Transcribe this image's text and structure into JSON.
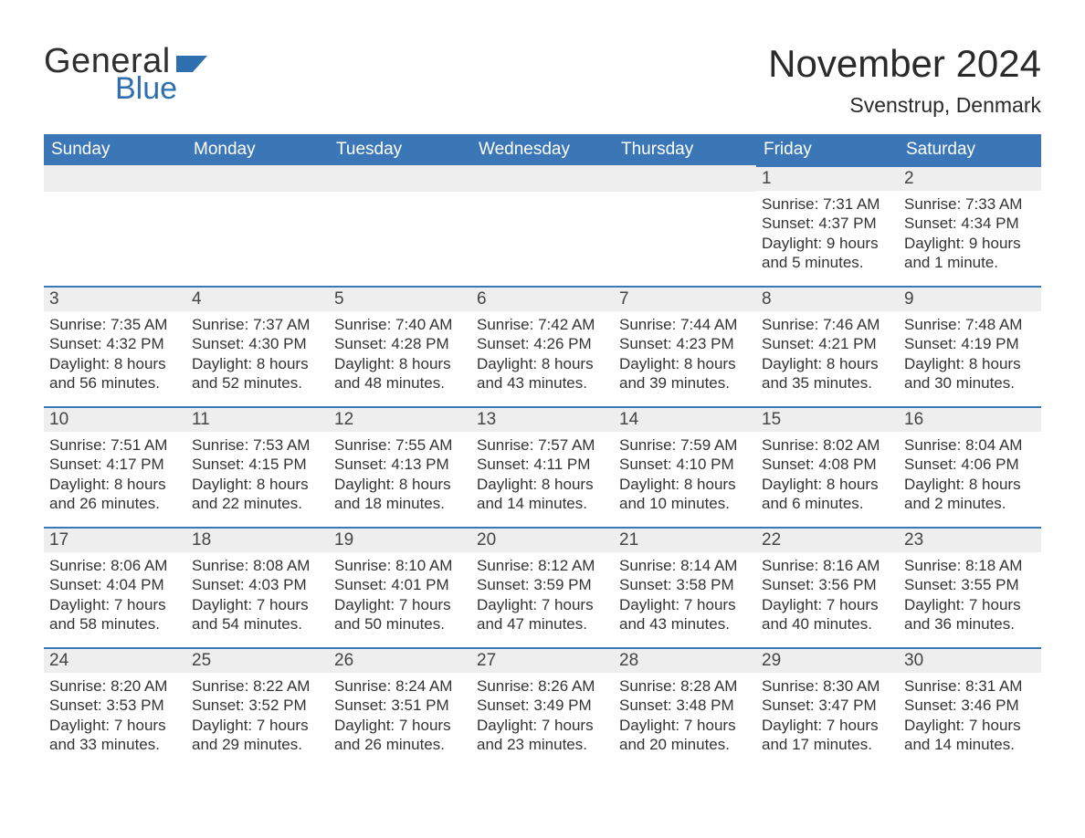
{
  "brand": {
    "word1": "General",
    "word2": "Blue",
    "word1_color": "#2f2f2f",
    "word2_color": "#2f6fb0",
    "flag_color": "#2f6fb0"
  },
  "header": {
    "month_year": "November 2024",
    "location": "Svenstrup, Denmark"
  },
  "colors": {
    "header_bg": "#3b77b7",
    "header_text": "#ffffff",
    "daynum_bg": "#eeeeee",
    "daynum_border": "#3b77b7",
    "text": "#333333",
    "page_bg": "#ffffff"
  },
  "typography": {
    "title_fontsize_pt": 32,
    "location_fontsize_pt": 17,
    "weekday_fontsize_pt": 14,
    "daynum_fontsize_pt": 14,
    "body_fontsize_pt": 13,
    "font_family": "Segoe UI"
  },
  "calendar": {
    "type": "table",
    "columns": [
      "Sunday",
      "Monday",
      "Tuesday",
      "Wednesday",
      "Thursday",
      "Friday",
      "Saturday"
    ],
    "weeks": [
      [
        {
          "empty": true
        },
        {
          "empty": true
        },
        {
          "empty": true
        },
        {
          "empty": true
        },
        {
          "empty": true
        },
        {
          "day": "1",
          "sunrise": "Sunrise: 7:31 AM",
          "sunset": "Sunset: 4:37 PM",
          "daylight": "Daylight: 9 hours and 5 minutes."
        },
        {
          "day": "2",
          "sunrise": "Sunrise: 7:33 AM",
          "sunset": "Sunset: 4:34 PM",
          "daylight": "Daylight: 9 hours and 1 minute."
        }
      ],
      [
        {
          "day": "3",
          "sunrise": "Sunrise: 7:35 AM",
          "sunset": "Sunset: 4:32 PM",
          "daylight": "Daylight: 8 hours and 56 minutes."
        },
        {
          "day": "4",
          "sunrise": "Sunrise: 7:37 AM",
          "sunset": "Sunset: 4:30 PM",
          "daylight": "Daylight: 8 hours and 52 minutes."
        },
        {
          "day": "5",
          "sunrise": "Sunrise: 7:40 AM",
          "sunset": "Sunset: 4:28 PM",
          "daylight": "Daylight: 8 hours and 48 minutes."
        },
        {
          "day": "6",
          "sunrise": "Sunrise: 7:42 AM",
          "sunset": "Sunset: 4:26 PM",
          "daylight": "Daylight: 8 hours and 43 minutes."
        },
        {
          "day": "7",
          "sunrise": "Sunrise: 7:44 AM",
          "sunset": "Sunset: 4:23 PM",
          "daylight": "Daylight: 8 hours and 39 minutes."
        },
        {
          "day": "8",
          "sunrise": "Sunrise: 7:46 AM",
          "sunset": "Sunset: 4:21 PM",
          "daylight": "Daylight: 8 hours and 35 minutes."
        },
        {
          "day": "9",
          "sunrise": "Sunrise: 7:48 AM",
          "sunset": "Sunset: 4:19 PM",
          "daylight": "Daylight: 8 hours and 30 minutes."
        }
      ],
      [
        {
          "day": "10",
          "sunrise": "Sunrise: 7:51 AM",
          "sunset": "Sunset: 4:17 PM",
          "daylight": "Daylight: 8 hours and 26 minutes."
        },
        {
          "day": "11",
          "sunrise": "Sunrise: 7:53 AM",
          "sunset": "Sunset: 4:15 PM",
          "daylight": "Daylight: 8 hours and 22 minutes."
        },
        {
          "day": "12",
          "sunrise": "Sunrise: 7:55 AM",
          "sunset": "Sunset: 4:13 PM",
          "daylight": "Daylight: 8 hours and 18 minutes."
        },
        {
          "day": "13",
          "sunrise": "Sunrise: 7:57 AM",
          "sunset": "Sunset: 4:11 PM",
          "daylight": "Daylight: 8 hours and 14 minutes."
        },
        {
          "day": "14",
          "sunrise": "Sunrise: 7:59 AM",
          "sunset": "Sunset: 4:10 PM",
          "daylight": "Daylight: 8 hours and 10 minutes."
        },
        {
          "day": "15",
          "sunrise": "Sunrise: 8:02 AM",
          "sunset": "Sunset: 4:08 PM",
          "daylight": "Daylight: 8 hours and 6 minutes."
        },
        {
          "day": "16",
          "sunrise": "Sunrise: 8:04 AM",
          "sunset": "Sunset: 4:06 PM",
          "daylight": "Daylight: 8 hours and 2 minutes."
        }
      ],
      [
        {
          "day": "17",
          "sunrise": "Sunrise: 8:06 AM",
          "sunset": "Sunset: 4:04 PM",
          "daylight": "Daylight: 7 hours and 58 minutes."
        },
        {
          "day": "18",
          "sunrise": "Sunrise: 8:08 AM",
          "sunset": "Sunset: 4:03 PM",
          "daylight": "Daylight: 7 hours and 54 minutes."
        },
        {
          "day": "19",
          "sunrise": "Sunrise: 8:10 AM",
          "sunset": "Sunset: 4:01 PM",
          "daylight": "Daylight: 7 hours and 50 minutes."
        },
        {
          "day": "20",
          "sunrise": "Sunrise: 8:12 AM",
          "sunset": "Sunset: 3:59 PM",
          "daylight": "Daylight: 7 hours and 47 minutes."
        },
        {
          "day": "21",
          "sunrise": "Sunrise: 8:14 AM",
          "sunset": "Sunset: 3:58 PM",
          "daylight": "Daylight: 7 hours and 43 minutes."
        },
        {
          "day": "22",
          "sunrise": "Sunrise: 8:16 AM",
          "sunset": "Sunset: 3:56 PM",
          "daylight": "Daylight: 7 hours and 40 minutes."
        },
        {
          "day": "23",
          "sunrise": "Sunrise: 8:18 AM",
          "sunset": "Sunset: 3:55 PM",
          "daylight": "Daylight: 7 hours and 36 minutes."
        }
      ],
      [
        {
          "day": "24",
          "sunrise": "Sunrise: 8:20 AM",
          "sunset": "Sunset: 3:53 PM",
          "daylight": "Daylight: 7 hours and 33 minutes."
        },
        {
          "day": "25",
          "sunrise": "Sunrise: 8:22 AM",
          "sunset": "Sunset: 3:52 PM",
          "daylight": "Daylight: 7 hours and 29 minutes."
        },
        {
          "day": "26",
          "sunrise": "Sunrise: 8:24 AM",
          "sunset": "Sunset: 3:51 PM",
          "daylight": "Daylight: 7 hours and 26 minutes."
        },
        {
          "day": "27",
          "sunrise": "Sunrise: 8:26 AM",
          "sunset": "Sunset: 3:49 PM",
          "daylight": "Daylight: 7 hours and 23 minutes."
        },
        {
          "day": "28",
          "sunrise": "Sunrise: 8:28 AM",
          "sunset": "Sunset: 3:48 PM",
          "daylight": "Daylight: 7 hours and 20 minutes."
        },
        {
          "day": "29",
          "sunrise": "Sunrise: 8:30 AM",
          "sunset": "Sunset: 3:47 PM",
          "daylight": "Daylight: 7 hours and 17 minutes."
        },
        {
          "day": "30",
          "sunrise": "Sunrise: 8:31 AM",
          "sunset": "Sunset: 3:46 PM",
          "daylight": "Daylight: 7 hours and 14 minutes."
        }
      ]
    ]
  }
}
